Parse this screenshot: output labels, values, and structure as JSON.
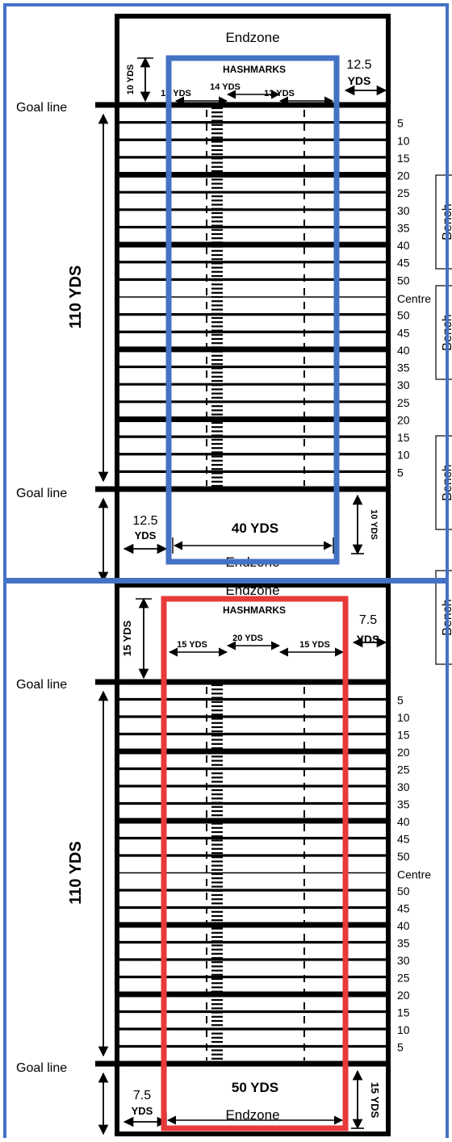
{
  "colors": {
    "ink": "#000000",
    "paper": "#ffffff",
    "blue_frame": "#4472c4",
    "red_frame": "#e83a3a"
  },
  "yard_labels": [
    "5",
    "10",
    "15",
    "20",
    "25",
    "30",
    "35",
    "40",
    "45",
    "50",
    "Centre",
    "50",
    "45",
    "40",
    "35",
    "30",
    "25",
    "20",
    "15",
    "10",
    "5"
  ],
  "fields": [
    {
      "id": "top",
      "endzone_top": "Endzone",
      "endzone_bottom": "Endzone",
      "hashmarks_title": "HASHMARKS",
      "hash_left": "13 YDS",
      "hash_mid": "14 YDS",
      "hash_right": "13 YDS",
      "side_top_num": "12.5",
      "side_top_unit": "YDS",
      "endzone_depth_top": "10 YDS",
      "goal_line_top": "Goal line",
      "goal_line_bottom": "Goal line",
      "length": "110 YDS",
      "side_bottom_num": "12.5",
      "side_bottom_unit": "YDS",
      "width": "40 YDS",
      "endzone_depth_bottom": "10 YDS",
      "bench_top": "Bench",
      "bench_bottom": "Bench"
    },
    {
      "id": "bottom",
      "endzone_top": "Endzone",
      "endzone_bottom": "Endzone",
      "hashmarks_title": "HASHMARKS",
      "hash_left": "15 YDS",
      "hash_mid": "20 YDS",
      "hash_right": "15 YDS",
      "side_top_num": "7.5",
      "side_top_unit": "YDS",
      "endzone_depth_top": "15 YDS",
      "goal_line_top": "Goal line",
      "goal_line_bottom": "Goal line",
      "length": "110 YDS",
      "side_bottom_num": "7.5",
      "side_bottom_unit": "YDS",
      "width": "50 YDS",
      "endzone_depth_bottom": "15 YDS",
      "bench_top": "Bench",
      "bench_bottom": "Bench"
    }
  ]
}
